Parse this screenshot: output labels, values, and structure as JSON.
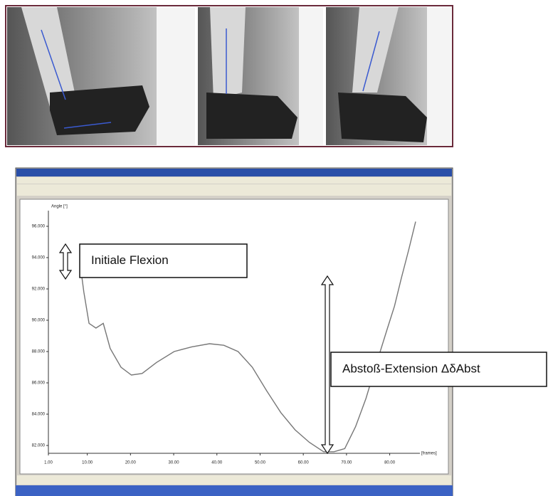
{
  "chart_data": {
    "type": "line",
    "y_label": "Angle [°]",
    "x_label": "[frames]",
    "x": [
      8.4,
      9.2,
      10.4,
      12.0,
      13.7,
      15.3,
      17.8,
      20.2,
      22.7,
      26.0,
      30.1,
      34.2,
      38.3,
      41.6,
      44.9,
      48.2,
      51.5,
      54.8,
      58.1,
      61.4,
      64.7,
      67.1,
      69.6,
      72.1,
      74.5,
      77.0,
      79.5,
      81.1,
      82.7,
      84.4,
      86.0
    ],
    "values": [
      93.5,
      91.8,
      89.8,
      89.5,
      89.8,
      88.2,
      87.0,
      86.5,
      86.6,
      87.3,
      88.0,
      88.3,
      88.5,
      88.4,
      88.0,
      87.0,
      85.5,
      84.1,
      83.0,
      82.2,
      81.6,
      81.6,
      81.8,
      83.2,
      85.0,
      87.3,
      89.5,
      90.9,
      92.7,
      94.5,
      96.3
    ],
    "color": "#777777",
    "xlim": [
      1,
      86
    ],
    "xticks": [
      {
        "value": 1,
        "label": "1.00"
      },
      {
        "value": 10,
        "label": "10.00"
      },
      {
        "value": 20,
        "label": "20.00"
      },
      {
        "value": 30,
        "label": "30.00"
      },
      {
        "value": 40,
        "label": "40.00"
      },
      {
        "value": 50,
        "label": "50.00"
      },
      {
        "value": 60,
        "label": "60.00"
      },
      {
        "value": 70,
        "label": "70.00"
      },
      {
        "value": 80,
        "label": "80.00"
      }
    ],
    "ylim": [
      81.5,
      97
    ],
    "yticks": [
      {
        "value": 82,
        "label": "82.000"
      },
      {
        "value": 84,
        "label": "84.000"
      },
      {
        "value": 86,
        "label": "86.000"
      },
      {
        "value": 88,
        "label": "88.000"
      },
      {
        "value": 90,
        "label": "90.000"
      },
      {
        "value": 92,
        "label": "92.000"
      },
      {
        "value": 94,
        "label": "94.000"
      },
      {
        "value": 96,
        "label": "96.000"
      }
    ],
    "grid": false,
    "annotations": [
      {
        "text": "Initiale Flexion"
      },
      {
        "text": "Abstoß-Extension ΔδAbst"
      }
    ]
  }
}
